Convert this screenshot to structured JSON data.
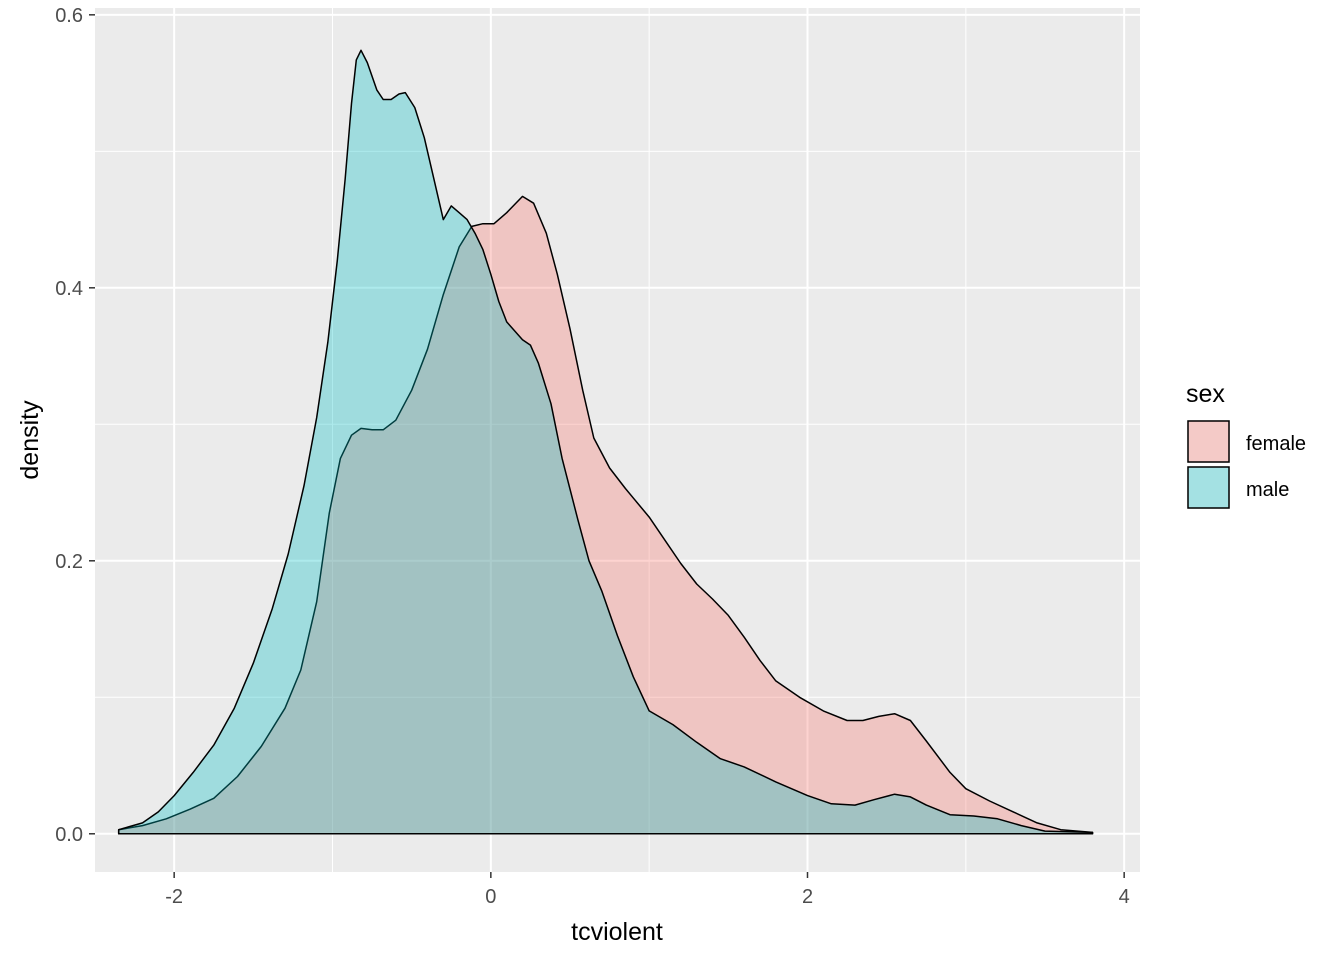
{
  "chart_data": {
    "type": "area",
    "subtype": "density",
    "xlabel": "tcviolent",
    "ylabel": "density",
    "xlim": [
      -2.5,
      4.1
    ],
    "ylim": [
      -0.028,
      0.605
    ],
    "xticks": [
      -2,
      0,
      2,
      4
    ],
    "xtick_labels": [
      "-2",
      "0",
      "2",
      "4"
    ],
    "yticks": [
      0.0,
      0.2,
      0.4,
      0.6
    ],
    "ytick_labels": [
      "0.0",
      "0.2",
      "0.4",
      "0.6"
    ],
    "grid": true,
    "legend": {
      "title": "sex",
      "position": "right"
    },
    "series": [
      {
        "name": "female",
        "color": "#F8766D",
        "points": [
          [
            -2.35,
            0.003
          ],
          [
            -2.2,
            0.006
          ],
          [
            -2.05,
            0.011
          ],
          [
            -1.9,
            0.018
          ],
          [
            -1.75,
            0.026
          ],
          [
            -1.6,
            0.042
          ],
          [
            -1.45,
            0.064
          ],
          [
            -1.3,
            0.092
          ],
          [
            -1.2,
            0.12
          ],
          [
            -1.1,
            0.17
          ],
          [
            -1.02,
            0.235
          ],
          [
            -0.95,
            0.275
          ],
          [
            -0.88,
            0.292
          ],
          [
            -0.82,
            0.297
          ],
          [
            -0.75,
            0.296
          ],
          [
            -0.68,
            0.296
          ],
          [
            -0.6,
            0.303
          ],
          [
            -0.5,
            0.325
          ],
          [
            -0.4,
            0.355
          ],
          [
            -0.3,
            0.395
          ],
          [
            -0.2,
            0.43
          ],
          [
            -0.12,
            0.445
          ],
          [
            -0.05,
            0.447
          ],
          [
            0.02,
            0.447
          ],
          [
            0.1,
            0.455
          ],
          [
            0.2,
            0.467
          ],
          [
            0.27,
            0.462
          ],
          [
            0.35,
            0.44
          ],
          [
            0.42,
            0.41
          ],
          [
            0.5,
            0.37
          ],
          [
            0.58,
            0.325
          ],
          [
            0.65,
            0.29
          ],
          [
            0.75,
            0.268
          ],
          [
            0.85,
            0.253
          ],
          [
            1.0,
            0.232
          ],
          [
            1.1,
            0.215
          ],
          [
            1.2,
            0.198
          ],
          [
            1.3,
            0.183
          ],
          [
            1.4,
            0.172
          ],
          [
            1.5,
            0.16
          ],
          [
            1.6,
            0.144
          ],
          [
            1.7,
            0.127
          ],
          [
            1.8,
            0.112
          ],
          [
            1.95,
            0.1
          ],
          [
            2.1,
            0.09
          ],
          [
            2.25,
            0.083
          ],
          [
            2.35,
            0.083
          ],
          [
            2.45,
            0.086
          ],
          [
            2.55,
            0.088
          ],
          [
            2.65,
            0.083
          ],
          [
            2.75,
            0.068
          ],
          [
            2.9,
            0.045
          ],
          [
            3.0,
            0.033
          ],
          [
            3.15,
            0.024
          ],
          [
            3.3,
            0.016
          ],
          [
            3.45,
            0.008
          ],
          [
            3.6,
            0.003
          ],
          [
            3.8,
            0.001
          ]
        ]
      },
      {
        "name": "male",
        "color": "#00BFC4",
        "points": [
          [
            -2.35,
            0.003
          ],
          [
            -2.2,
            0.008
          ],
          [
            -2.1,
            0.016
          ],
          [
            -2.0,
            0.028
          ],
          [
            -1.88,
            0.045
          ],
          [
            -1.75,
            0.065
          ],
          [
            -1.62,
            0.092
          ],
          [
            -1.5,
            0.125
          ],
          [
            -1.38,
            0.165
          ],
          [
            -1.28,
            0.205
          ],
          [
            -1.18,
            0.255
          ],
          [
            -1.1,
            0.305
          ],
          [
            -1.03,
            0.36
          ],
          [
            -0.97,
            0.42
          ],
          [
            -0.92,
            0.48
          ],
          [
            -0.88,
            0.535
          ],
          [
            -0.85,
            0.567
          ],
          [
            -0.82,
            0.574
          ],
          [
            -0.78,
            0.565
          ],
          [
            -0.72,
            0.545
          ],
          [
            -0.68,
            0.538
          ],
          [
            -0.63,
            0.538
          ],
          [
            -0.58,
            0.542
          ],
          [
            -0.54,
            0.543
          ],
          [
            -0.48,
            0.532
          ],
          [
            -0.42,
            0.51
          ],
          [
            -0.36,
            0.48
          ],
          [
            -0.3,
            0.45
          ],
          [
            -0.25,
            0.46
          ],
          [
            -0.2,
            0.455
          ],
          [
            -0.15,
            0.45
          ],
          [
            -0.1,
            0.44
          ],
          [
            -0.05,
            0.428
          ],
          [
            0.0,
            0.41
          ],
          [
            0.05,
            0.39
          ],
          [
            0.1,
            0.375
          ],
          [
            0.2,
            0.362
          ],
          [
            0.25,
            0.358
          ],
          [
            0.3,
            0.345
          ],
          [
            0.38,
            0.315
          ],
          [
            0.45,
            0.275
          ],
          [
            0.55,
            0.23
          ],
          [
            0.62,
            0.2
          ],
          [
            0.7,
            0.178
          ],
          [
            0.8,
            0.145
          ],
          [
            0.9,
            0.115
          ],
          [
            1.0,
            0.09
          ],
          [
            1.15,
            0.08
          ],
          [
            1.3,
            0.067
          ],
          [
            1.45,
            0.055
          ],
          [
            1.6,
            0.049
          ],
          [
            1.8,
            0.038
          ],
          [
            2.0,
            0.028
          ],
          [
            2.15,
            0.022
          ],
          [
            2.3,
            0.021
          ],
          [
            2.42,
            0.025
          ],
          [
            2.55,
            0.029
          ],
          [
            2.65,
            0.027
          ],
          [
            2.75,
            0.021
          ],
          [
            2.9,
            0.014
          ],
          [
            3.05,
            0.013
          ],
          [
            3.2,
            0.011
          ],
          [
            3.35,
            0.006
          ],
          [
            3.5,
            0.002
          ],
          [
            3.8,
            0.001
          ]
        ]
      }
    ]
  }
}
